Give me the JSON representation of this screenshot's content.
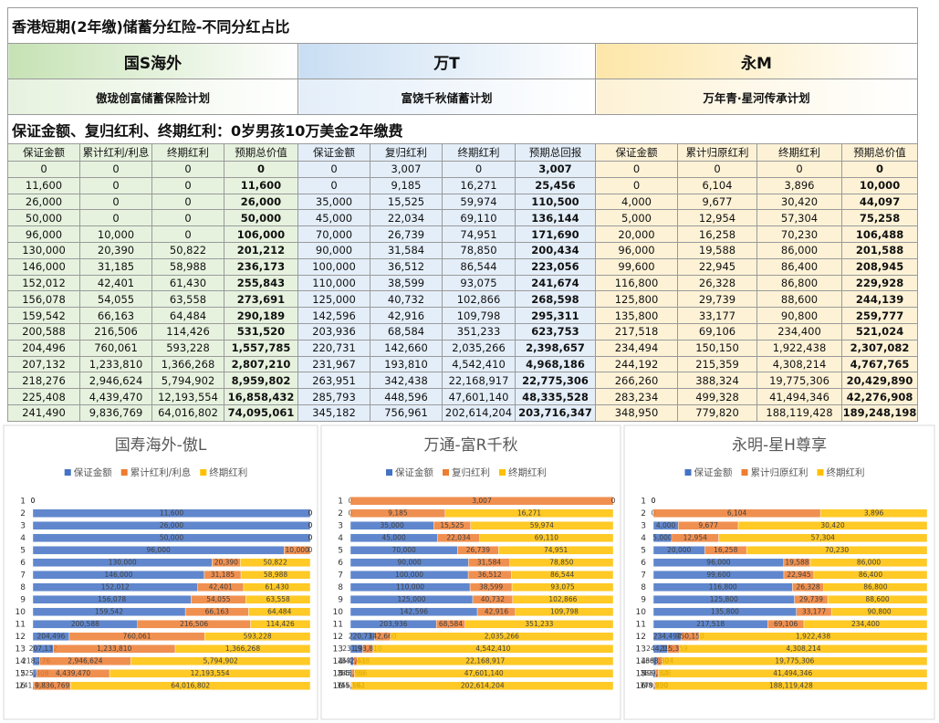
{
  "title": "香港短期(2年缴)储蓄分红险-不同分红占比",
  "table": {
    "groups": [
      {
        "company": "国S海外",
        "plan": "傲珑创富储蓄保险计划"
      },
      {
        "company": "万T",
        "plan": "富饶千秋储蓄计划"
      },
      {
        "company": "永M",
        "plan": "万年青·星河传承计划"
      }
    ],
    "subtitle": "保证金额、复归红利、终期红利：0岁男孩10万美金2年缴费",
    "columns": [
      "保证金额",
      "累计红利/利息",
      "终期红利",
      "预期总价值",
      "保证金额",
      "复归红利",
      "终期红利",
      "预期总回报",
      "保证金额",
      "累计归原红利",
      "终期红利",
      "预期总价值"
    ],
    "rows": [
      [
        "0",
        "0",
        "0",
        "0",
        "0",
        "3,007",
        "0",
        "3,007",
        "0",
        "0",
        "0",
        "0"
      ],
      [
        "11,600",
        "0",
        "0",
        "11,600",
        "0",
        "9,185",
        "16,271",
        "25,456",
        "0",
        "6,104",
        "3,896",
        "10,000"
      ],
      [
        "26,000",
        "0",
        "0",
        "26,000",
        "35,000",
        "15,525",
        "59,974",
        "110,500",
        "4,000",
        "9,677",
        "30,420",
        "44,097"
      ],
      [
        "50,000",
        "0",
        "0",
        "50,000",
        "45,000",
        "22,034",
        "69,110",
        "136,144",
        "5,000",
        "12,954",
        "57,304",
        "75,258"
      ],
      [
        "96,000",
        "10,000",
        "0",
        "106,000",
        "70,000",
        "26,739",
        "74,951",
        "171,690",
        "20,000",
        "16,258",
        "70,230",
        "106,488"
      ],
      [
        "130,000",
        "20,390",
        "50,822",
        "201,212",
        "90,000",
        "31,584",
        "78,850",
        "200,434",
        "96,000",
        "19,588",
        "86,000",
        "201,588"
      ],
      [
        "146,000",
        "31,185",
        "58,988",
        "236,173",
        "100,000",
        "36,512",
        "86,544",
        "223,056",
        "99,600",
        "22,945",
        "86,400",
        "208,945"
      ],
      [
        "152,012",
        "42,401",
        "61,430",
        "255,843",
        "110,000",
        "38,599",
        "93,075",
        "241,674",
        "116,800",
        "26,328",
        "86,800",
        "229,928"
      ],
      [
        "156,078",
        "54,055",
        "63,558",
        "273,691",
        "125,000",
        "40,732",
        "102,866",
        "268,598",
        "125,800",
        "29,739",
        "88,600",
        "244,139"
      ],
      [
        "159,542",
        "66,163",
        "64,484",
        "290,189",
        "142,596",
        "42,916",
        "109,798",
        "295,311",
        "135,800",
        "33,177",
        "90,800",
        "259,777"
      ],
      [
        "200,588",
        "216,506",
        "114,426",
        "531,520",
        "203,936",
        "68,584",
        "351,233",
        "623,753",
        "217,518",
        "69,106",
        "234,400",
        "521,024"
      ],
      [
        "204,496",
        "760,061",
        "593,228",
        "1,557,785",
        "220,731",
        "142,660",
        "2,035,266",
        "2,398,657",
        "234,494",
        "150,150",
        "1,922,438",
        "2,307,082"
      ],
      [
        "207,132",
        "1,233,810",
        "1,366,268",
        "2,807,210",
        "231,967",
        "193,810",
        "4,542,410",
        "4,968,186",
        "244,192",
        "215,359",
        "4,308,214",
        "4,767,765"
      ],
      [
        "218,276",
        "2,946,624",
        "5,794,902",
        "8,959,802",
        "263,951",
        "342,438",
        "22,168,917",
        "22,775,306",
        "266,260",
        "388,324",
        "19,775,306",
        "20,429,890"
      ],
      [
        "225,408",
        "4,439,470",
        "12,193,554",
        "16,858,432",
        "285,793",
        "448,596",
        "47,601,140",
        "48,335,528",
        "283,234",
        "499,328",
        "41,494,346",
        "42,276,908"
      ],
      [
        "241,490",
        "9,836,769",
        "64,016,802",
        "74,095,061",
        "345,182",
        "756,961",
        "202,614,204",
        "203,716,347",
        "348,950",
        "779,820",
        "188,119,428",
        "189,248,198"
      ]
    ]
  },
  "chart_data": [
    {
      "type": "bar",
      "orientation": "horizontal",
      "stacking": "percent",
      "title": "国寿海外-傲L",
      "categories": [
        "1",
        "2",
        "3",
        "4",
        "5",
        "6",
        "7",
        "8",
        "9",
        "10",
        "11",
        "12",
        "13",
        "14",
        "15",
        "16"
      ],
      "series": [
        {
          "name": "保证金额",
          "color": "#4472c4",
          "values": [
            0,
            11600,
            26000,
            50000,
            96000,
            130000,
            146000,
            152012,
            156078,
            159542,
            200588,
            204496,
            207132,
            218276,
            225408,
            241490
          ],
          "value_labels": [
            "0",
            "11,600",
            "26,000",
            "50,000",
            "96,000",
            "130,000",
            "146,000",
            "152,012",
            "156,078",
            "159,542",
            "200,588",
            "204,496",
            "207,132",
            "218,276",
            "225,408",
            "241,490"
          ]
        },
        {
          "name": "累计红利/利息",
          "color": "#ed7d31",
          "values": [
            0,
            0,
            0,
            0,
            10000,
            20390,
            31185,
            42401,
            54055,
            66163,
            216506,
            760061,
            1233810,
            2946624,
            4439470,
            9836769
          ],
          "value_labels": [
            "0",
            "0",
            "0",
            "0",
            "10,000",
            "20,390",
            "31,185",
            "42,401",
            "54,055",
            "66,163",
            "216,506",
            "760,061",
            "1,233,810",
            "2,946,624",
            "4,439,470",
            "9,836,769"
          ]
        },
        {
          "name": "终期红利",
          "color": "#ffc000",
          "values": [
            0,
            0,
            0,
            0,
            0,
            50822,
            58988,
            61430,
            63558,
            64484,
            114426,
            593228,
            1366268,
            5794902,
            12193554,
            64016802
          ],
          "value_labels": [
            "0",
            "0",
            "0",
            "0",
            "0",
            "50,822",
            "58,988",
            "61,430",
            "63,558",
            "64,484",
            "114,426",
            "593,228",
            "1,366,268",
            "5,794,902",
            "12,193,554",
            "64,016,802"
          ]
        }
      ]
    },
    {
      "type": "bar",
      "orientation": "horizontal",
      "stacking": "percent",
      "title": "万通-富R千秋",
      "categories": [
        "1",
        "2",
        "3",
        "4",
        "5",
        "6",
        "7",
        "8",
        "9",
        "10",
        "11",
        "12",
        "13",
        "14",
        "15",
        "16"
      ],
      "series": [
        {
          "name": "保证金额",
          "color": "#4472c4",
          "values": [
            0,
            0,
            35000,
            45000,
            70000,
            90000,
            100000,
            110000,
            125000,
            142596,
            203936,
            220731,
            231967,
            263951,
            285793,
            345182
          ],
          "value_labels": [
            "0",
            "0",
            "35,000",
            "45,000",
            "70,000",
            "90,000",
            "100,000",
            "110,000",
            "125,000",
            "142,596",
            "203,936",
            "220,731",
            "231,967",
            "263,951",
            "285,793",
            "345,182"
          ]
        },
        {
          "name": "复归红利",
          "color": "#ed7d31",
          "values": [
            3007,
            9185,
            15525,
            22034,
            26739,
            31584,
            36512,
            38599,
            40732,
            42916,
            68584,
            142660,
            193810,
            342438,
            448596,
            756961
          ],
          "value_labels": [
            "3,007",
            "9,185",
            "15,525",
            "22,034",
            "26,739",
            "31,584",
            "36,512",
            "38,599",
            "40,732",
            "42,916",
            "68,584",
            "142,660",
            "193,810",
            "342,438",
            "448,596",
            "756,961"
          ]
        },
        {
          "name": "终期红利",
          "color": "#ffc000",
          "values": [
            0,
            16271,
            59974,
            69110,
            74951,
            78850,
            86544,
            93075,
            102866,
            109798,
            351233,
            2035266,
            4542410,
            22168917,
            47601140,
            202614204
          ],
          "value_labels": [
            "0",
            "16,271",
            "59,974",
            "69,110",
            "74,951",
            "78,850",
            "86,544",
            "93,075",
            "102,866",
            "109,798",
            "351,233",
            "2,035,266",
            "4,542,410",
            "22,168,917",
            "47,601,140",
            "202,614,204"
          ]
        }
      ]
    },
    {
      "type": "bar",
      "orientation": "horizontal",
      "stacking": "percent",
      "title": "永明-星H尊享",
      "categories": [
        "1",
        "2",
        "3",
        "4",
        "5",
        "6",
        "7",
        "8",
        "9",
        "10",
        "11",
        "12",
        "13",
        "14",
        "15",
        "16"
      ],
      "series": [
        {
          "name": "保证金额",
          "color": "#4472c4",
          "values": [
            0,
            0,
            4000,
            5000,
            20000,
            96000,
            99600,
            116800,
            125800,
            135800,
            217518,
            234494,
            244192,
            266260,
            283234,
            348950
          ],
          "value_labels": [
            "0",
            "0",
            "4,000",
            "5,000",
            "20,000",
            "96,000",
            "99,600",
            "116,800",
            "125,800",
            "135,800",
            "217,518",
            "234,494",
            "244,192",
            "266,260",
            "283,234",
            "348,950"
          ]
        },
        {
          "name": "累计归原红利",
          "color": "#ed7d31",
          "values": [
            0,
            6104,
            9677,
            12954,
            16258,
            19588,
            22945,
            26328,
            29739,
            33177,
            69106,
            150150,
            215359,
            388324,
            499328,
            779820
          ],
          "value_labels": [
            "0",
            "6,104",
            "9,677",
            "12,954",
            "16,258",
            "19,588",
            "22,945",
            "26,328",
            "29,739",
            "33,177",
            "69,106",
            "150,150",
            "215,359",
            "388,324",
            "499,328",
            "779,820"
          ]
        },
        {
          "name": "终期红利",
          "color": "#ffc000",
          "values": [
            0,
            3896,
            30420,
            57304,
            70230,
            86000,
            86400,
            86800,
            88600,
            90800,
            234400,
            1922438,
            4308214,
            19775306,
            41494346,
            188119428
          ],
          "value_labels": [
            "0",
            "3,896",
            "30,420",
            "57,304",
            "70,230",
            "86,000",
            "86,400",
            "86,800",
            "88,600",
            "90,800",
            "234,400",
            "1,922,438",
            "4,308,214",
            "19,775,306",
            "41,494,346",
            "188,119,428"
          ]
        }
      ]
    }
  ]
}
